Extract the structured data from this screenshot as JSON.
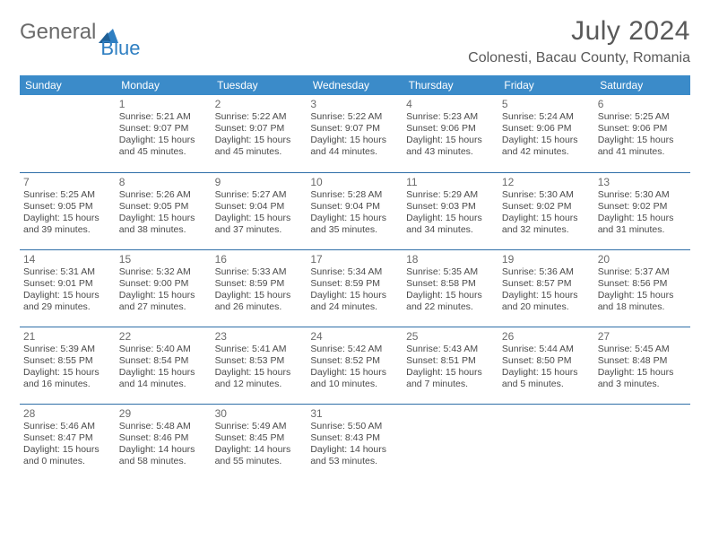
{
  "brand": {
    "part1": "General",
    "part2": "Blue"
  },
  "header": {
    "month_title": "July 2024",
    "location": "Colonesti, Bacau County, Romania"
  },
  "colors": {
    "header_bg": "#3b8bc9",
    "row_border": "#2f6fa8",
    "logo_gray": "#6b6b6b",
    "logo_blue": "#2f7fc2"
  },
  "day_headers": [
    "Sunday",
    "Monday",
    "Tuesday",
    "Wednesday",
    "Thursday",
    "Friday",
    "Saturday"
  ],
  "weeks": [
    [
      null,
      {
        "n": "1",
        "r": "Sunrise: 5:21 AM",
        "s": "Sunset: 9:07 PM",
        "d1": "Daylight: 15 hours",
        "d2": "and 45 minutes."
      },
      {
        "n": "2",
        "r": "Sunrise: 5:22 AM",
        "s": "Sunset: 9:07 PM",
        "d1": "Daylight: 15 hours",
        "d2": "and 45 minutes."
      },
      {
        "n": "3",
        "r": "Sunrise: 5:22 AM",
        "s": "Sunset: 9:07 PM",
        "d1": "Daylight: 15 hours",
        "d2": "and 44 minutes."
      },
      {
        "n": "4",
        "r": "Sunrise: 5:23 AM",
        "s": "Sunset: 9:06 PM",
        "d1": "Daylight: 15 hours",
        "d2": "and 43 minutes."
      },
      {
        "n": "5",
        "r": "Sunrise: 5:24 AM",
        "s": "Sunset: 9:06 PM",
        "d1": "Daylight: 15 hours",
        "d2": "and 42 minutes."
      },
      {
        "n": "6",
        "r": "Sunrise: 5:25 AM",
        "s": "Sunset: 9:06 PM",
        "d1": "Daylight: 15 hours",
        "d2": "and 41 minutes."
      }
    ],
    [
      {
        "n": "7",
        "r": "Sunrise: 5:25 AM",
        "s": "Sunset: 9:05 PM",
        "d1": "Daylight: 15 hours",
        "d2": "and 39 minutes."
      },
      {
        "n": "8",
        "r": "Sunrise: 5:26 AM",
        "s": "Sunset: 9:05 PM",
        "d1": "Daylight: 15 hours",
        "d2": "and 38 minutes."
      },
      {
        "n": "9",
        "r": "Sunrise: 5:27 AM",
        "s": "Sunset: 9:04 PM",
        "d1": "Daylight: 15 hours",
        "d2": "and 37 minutes."
      },
      {
        "n": "10",
        "r": "Sunrise: 5:28 AM",
        "s": "Sunset: 9:04 PM",
        "d1": "Daylight: 15 hours",
        "d2": "and 35 minutes."
      },
      {
        "n": "11",
        "r": "Sunrise: 5:29 AM",
        "s": "Sunset: 9:03 PM",
        "d1": "Daylight: 15 hours",
        "d2": "and 34 minutes."
      },
      {
        "n": "12",
        "r": "Sunrise: 5:30 AM",
        "s": "Sunset: 9:02 PM",
        "d1": "Daylight: 15 hours",
        "d2": "and 32 minutes."
      },
      {
        "n": "13",
        "r": "Sunrise: 5:30 AM",
        "s": "Sunset: 9:02 PM",
        "d1": "Daylight: 15 hours",
        "d2": "and 31 minutes."
      }
    ],
    [
      {
        "n": "14",
        "r": "Sunrise: 5:31 AM",
        "s": "Sunset: 9:01 PM",
        "d1": "Daylight: 15 hours",
        "d2": "and 29 minutes."
      },
      {
        "n": "15",
        "r": "Sunrise: 5:32 AM",
        "s": "Sunset: 9:00 PM",
        "d1": "Daylight: 15 hours",
        "d2": "and 27 minutes."
      },
      {
        "n": "16",
        "r": "Sunrise: 5:33 AM",
        "s": "Sunset: 8:59 PM",
        "d1": "Daylight: 15 hours",
        "d2": "and 26 minutes."
      },
      {
        "n": "17",
        "r": "Sunrise: 5:34 AM",
        "s": "Sunset: 8:59 PM",
        "d1": "Daylight: 15 hours",
        "d2": "and 24 minutes."
      },
      {
        "n": "18",
        "r": "Sunrise: 5:35 AM",
        "s": "Sunset: 8:58 PM",
        "d1": "Daylight: 15 hours",
        "d2": "and 22 minutes."
      },
      {
        "n": "19",
        "r": "Sunrise: 5:36 AM",
        "s": "Sunset: 8:57 PM",
        "d1": "Daylight: 15 hours",
        "d2": "and 20 minutes."
      },
      {
        "n": "20",
        "r": "Sunrise: 5:37 AM",
        "s": "Sunset: 8:56 PM",
        "d1": "Daylight: 15 hours",
        "d2": "and 18 minutes."
      }
    ],
    [
      {
        "n": "21",
        "r": "Sunrise: 5:39 AM",
        "s": "Sunset: 8:55 PM",
        "d1": "Daylight: 15 hours",
        "d2": "and 16 minutes."
      },
      {
        "n": "22",
        "r": "Sunrise: 5:40 AM",
        "s": "Sunset: 8:54 PM",
        "d1": "Daylight: 15 hours",
        "d2": "and 14 minutes."
      },
      {
        "n": "23",
        "r": "Sunrise: 5:41 AM",
        "s": "Sunset: 8:53 PM",
        "d1": "Daylight: 15 hours",
        "d2": "and 12 minutes."
      },
      {
        "n": "24",
        "r": "Sunrise: 5:42 AM",
        "s": "Sunset: 8:52 PM",
        "d1": "Daylight: 15 hours",
        "d2": "and 10 minutes."
      },
      {
        "n": "25",
        "r": "Sunrise: 5:43 AM",
        "s": "Sunset: 8:51 PM",
        "d1": "Daylight: 15 hours",
        "d2": "and 7 minutes."
      },
      {
        "n": "26",
        "r": "Sunrise: 5:44 AM",
        "s": "Sunset: 8:50 PM",
        "d1": "Daylight: 15 hours",
        "d2": "and 5 minutes."
      },
      {
        "n": "27",
        "r": "Sunrise: 5:45 AM",
        "s": "Sunset: 8:48 PM",
        "d1": "Daylight: 15 hours",
        "d2": "and 3 minutes."
      }
    ],
    [
      {
        "n": "28",
        "r": "Sunrise: 5:46 AM",
        "s": "Sunset: 8:47 PM",
        "d1": "Daylight: 15 hours",
        "d2": "and 0 minutes."
      },
      {
        "n": "29",
        "r": "Sunrise: 5:48 AM",
        "s": "Sunset: 8:46 PM",
        "d1": "Daylight: 14 hours",
        "d2": "and 58 minutes."
      },
      {
        "n": "30",
        "r": "Sunrise: 5:49 AM",
        "s": "Sunset: 8:45 PM",
        "d1": "Daylight: 14 hours",
        "d2": "and 55 minutes."
      },
      {
        "n": "31",
        "r": "Sunrise: 5:50 AM",
        "s": "Sunset: 8:43 PM",
        "d1": "Daylight: 14 hours",
        "d2": "and 53 minutes."
      },
      null,
      null,
      null
    ]
  ]
}
